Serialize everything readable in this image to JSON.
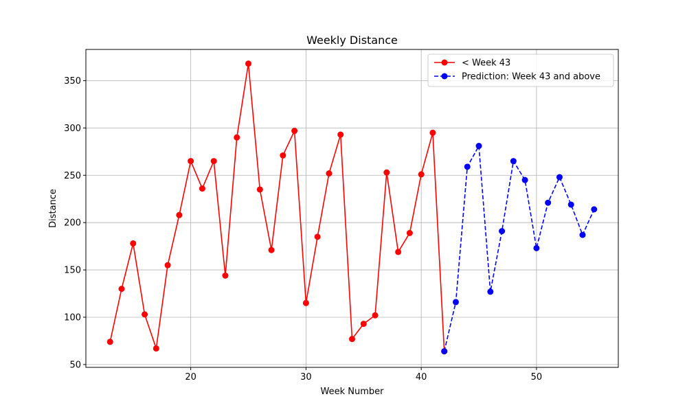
{
  "chart_data": {
    "type": "line",
    "title": "Weekly Distance",
    "xlabel": "Week Number",
    "ylabel": "Distance",
    "xlim": [
      10.9,
      57.1
    ],
    "ylim": [
      47,
      383
    ],
    "xticks": [
      20,
      30,
      40,
      50
    ],
    "yticks": [
      50,
      100,
      150,
      200,
      250,
      300,
      350
    ],
    "grid": true,
    "legend_position": "top-right",
    "series": [
      {
        "name": "< Week 43",
        "color": "#ff0000",
        "linestyle": "solid",
        "marker": "circle",
        "x": [
          13,
          14,
          15,
          16,
          17,
          18,
          19,
          20,
          21,
          22,
          23,
          24,
          25,
          26,
          27,
          28,
          29,
          30,
          31,
          32,
          33,
          34,
          35,
          36,
          37,
          38,
          39,
          40,
          41,
          42
        ],
        "y": [
          74,
          130,
          178,
          103,
          67,
          155,
          208,
          265,
          236,
          265,
          144,
          290,
          368,
          235,
          171,
          271,
          297,
          115,
          185,
          252,
          293,
          77,
          93,
          102,
          253,
          169,
          189,
          251,
          295,
          64
        ]
      },
      {
        "name": "Prediction: Week 43 and above",
        "color": "#0000ff",
        "linestyle": "dashed",
        "marker": "circle",
        "x": [
          42,
          43,
          44,
          45,
          46,
          47,
          48,
          49,
          50,
          51,
          52,
          53,
          54,
          55
        ],
        "y": [
          64,
          116,
          259,
          281,
          127,
          191,
          265,
          245,
          173,
          221,
          248,
          219,
          187,
          214
        ]
      }
    ]
  }
}
